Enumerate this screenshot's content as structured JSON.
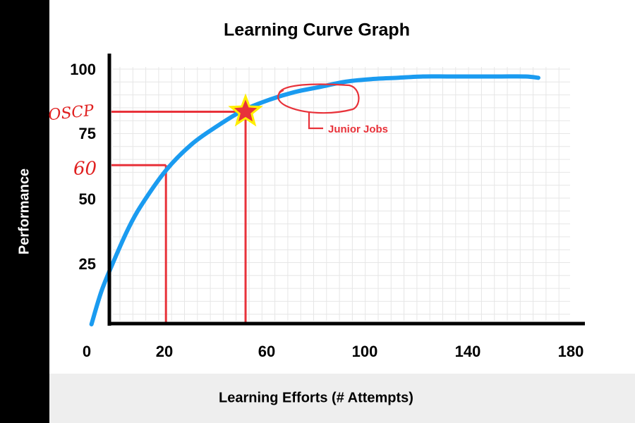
{
  "chart_data": {
    "type": "line",
    "title": "Learning Curve Graph",
    "xlabel": "Learning Efforts (# Attempts)",
    "ylabel": "Performance",
    "x_ticks": [
      0,
      20,
      60,
      100,
      140,
      180
    ],
    "y_ticks": [
      25,
      50,
      75,
      100
    ],
    "grid": true,
    "series": [
      {
        "color": "#1a9bf0",
        "x": [
          1,
          5,
          10,
          15,
          20,
          30,
          40,
          50,
          60,
          70,
          80,
          90,
          100,
          110,
          120,
          130,
          140,
          150,
          160,
          170,
          175
        ],
        "y": [
          0,
          13,
          25,
          36,
          45,
          59,
          69,
          76,
          82,
          86,
          89,
          91,
          93,
          94,
          94.5,
          95,
          95,
          95,
          95,
          95,
          94.5
        ]
      }
    ],
    "annotations": [
      {
        "kind": "reference-lines",
        "x": 30,
        "y": 61,
        "label": "60",
        "color": "#e8323a"
      },
      {
        "kind": "reference-lines",
        "x": 61,
        "y": 81.5,
        "label": "OSCP",
        "color": "#e8323a"
      },
      {
        "kind": "star-marker",
        "x": 61,
        "y": 81.5,
        "fill": "#e8323a",
        "outline": "#ffee00"
      },
      {
        "kind": "callout",
        "text": "Junior Jobs",
        "color": "#e8323a"
      }
    ]
  }
}
